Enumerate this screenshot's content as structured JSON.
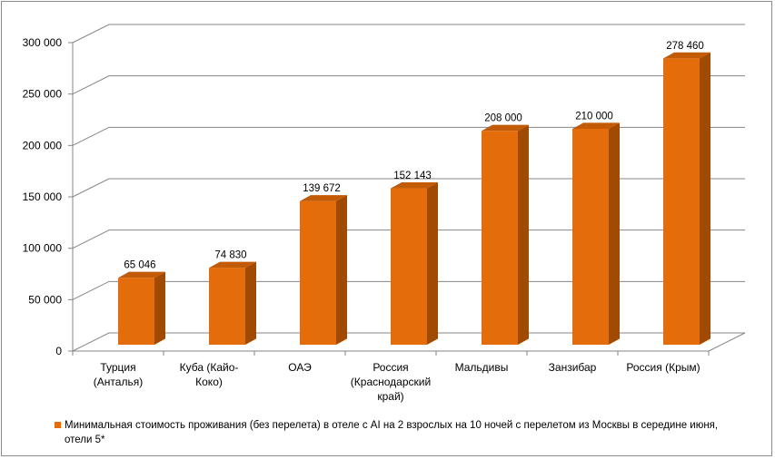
{
  "chart_data": {
    "type": "bar",
    "style": "3d-column",
    "categories": [
      "Турция (Анталья)",
      "Куба (Кайо-Коко)",
      "ОАЭ",
      "Россия (Краснодарский край)",
      "Мальдивы",
      "Занзибар",
      "Россия (Крым)"
    ],
    "category_lines": [
      [
        "Турция",
        "(Анталья)"
      ],
      [
        "Куба (Кайо-",
        "Коко)"
      ],
      [
        "ОАЭ"
      ],
      [
        "Россия",
        "(Краснодарский",
        "край)"
      ],
      [
        "Мальдивы"
      ],
      [
        "Занзибар"
      ],
      [
        "Россия (Крым)"
      ]
    ],
    "series": [
      {
        "name": "Минимальная стоимость проживания  (без перелета) в отеле с AI на 2 взрослых на 10 ночей с перелетом из Москвы в середине июня, отели 5*",
        "values": [
          65046,
          74830,
          139672,
          152143,
          208000,
          210000,
          278460
        ],
        "labels": [
          "65 046",
          "74 830",
          "139 672",
          "152 143",
          "208 000",
          "210 000",
          "278 460"
        ],
        "color": "#e46c0a"
      }
    ],
    "yticks": [
      "0",
      "50 000",
      "100 000",
      "150 000",
      "200 000",
      "250 000",
      "300 000"
    ],
    "ylim": [
      0,
      300000
    ],
    "grid": true,
    "legend_position": "bottom"
  }
}
